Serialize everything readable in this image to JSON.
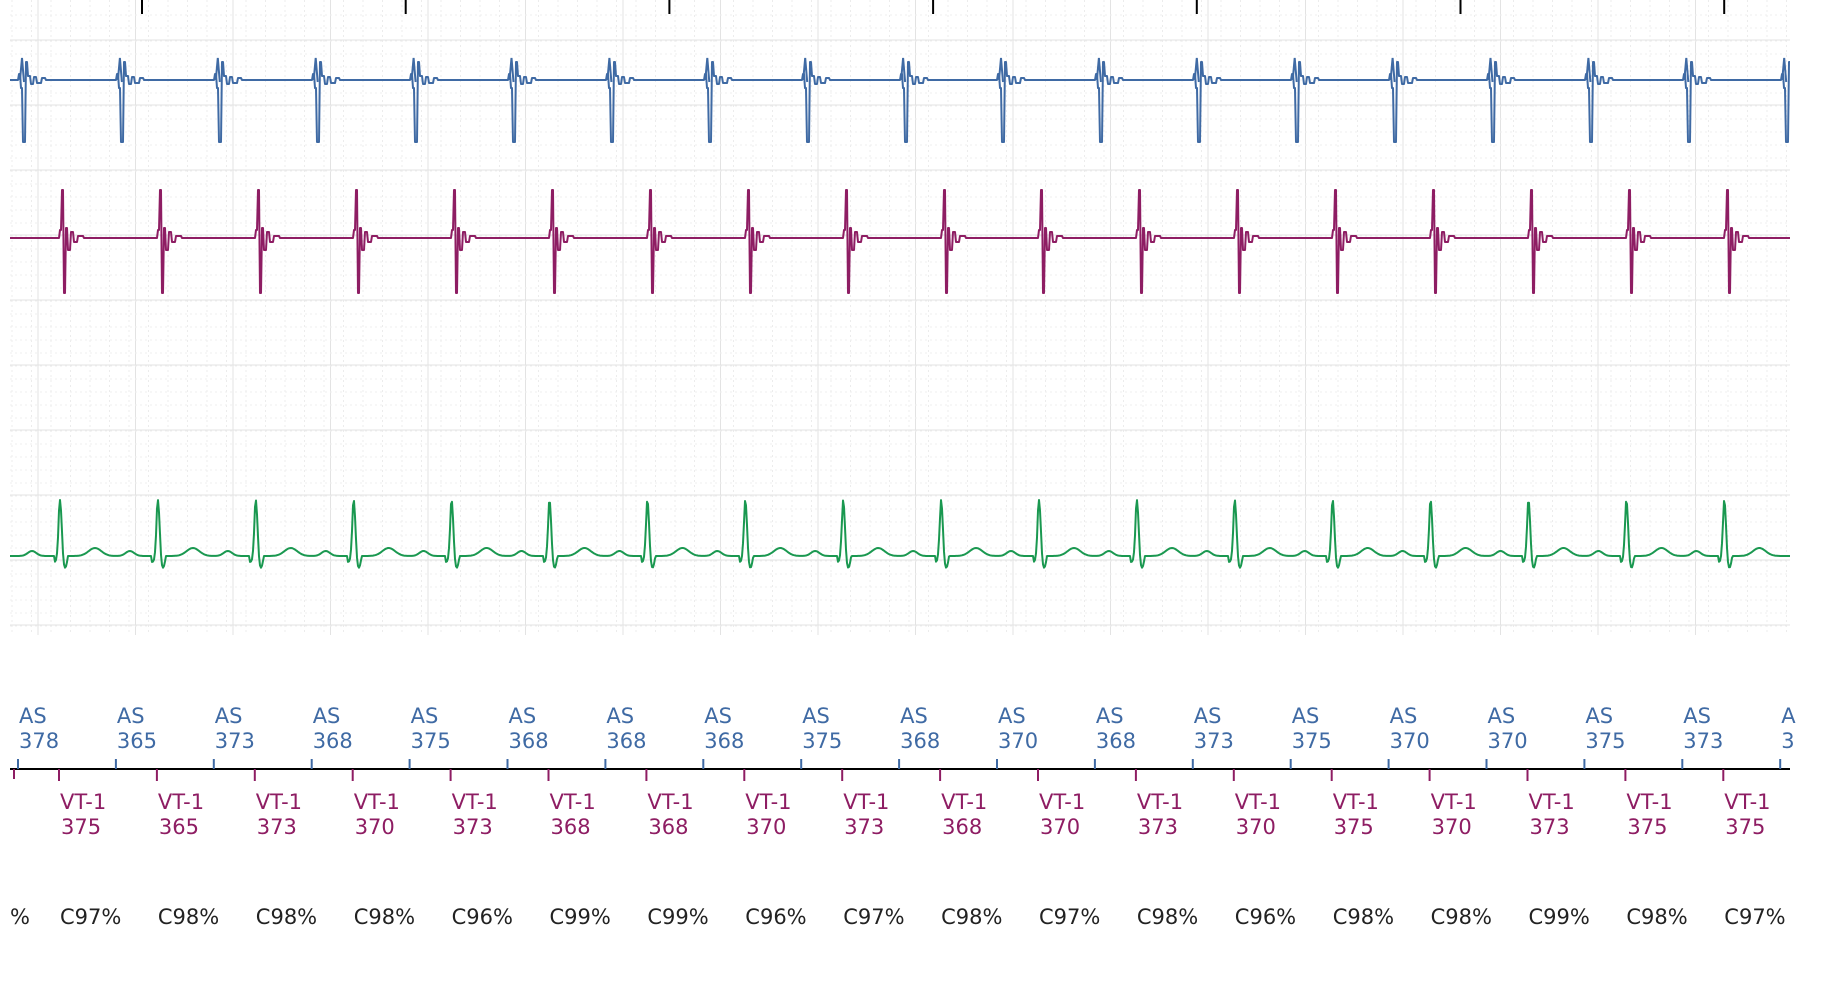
{
  "colors": {
    "atrial": "#3f6aa4",
    "ventricular": "#8e1d63",
    "surface": "#1a9850",
    "grid": "#e3e3e3",
    "marker_text": "#222222",
    "axis": "#000000"
  },
  "chart_data": {
    "type": "line",
    "channels": [
      {
        "color_key": "atrial",
        "waveform": "atrial-egm",
        "beats": 18
      },
      {
        "color_key": "ventricular",
        "waveform": "ventricular-egm",
        "beats": 18
      },
      {
        "color_key": "surface",
        "waveform": "surface-ecg",
        "beats": 18
      }
    ],
    "grid": true,
    "atrial_markers": [
      {
        "label": "AS",
        "interval": "378"
      },
      {
        "label": "AS",
        "interval": "365"
      },
      {
        "label": "AS",
        "interval": "373"
      },
      {
        "label": "AS",
        "interval": "368"
      },
      {
        "label": "AS",
        "interval": "375"
      },
      {
        "label": "AS",
        "interval": "368"
      },
      {
        "label": "AS",
        "interval": "368"
      },
      {
        "label": "AS",
        "interval": "368"
      },
      {
        "label": "AS",
        "interval": "375"
      },
      {
        "label": "AS",
        "interval": "368"
      },
      {
        "label": "AS",
        "interval": "370"
      },
      {
        "label": "AS",
        "interval": "368"
      },
      {
        "label": "AS",
        "interval": "373"
      },
      {
        "label": "AS",
        "interval": "375"
      },
      {
        "label": "AS",
        "interval": "370"
      },
      {
        "label": "AS",
        "interval": "370"
      },
      {
        "label": "AS",
        "interval": "375"
      },
      {
        "label": "AS",
        "interval": "373"
      },
      {
        "label": "A",
        "interval": "3"
      }
    ],
    "ventricular_markers": [
      {
        "label": "VT-1",
        "interval": "375"
      },
      {
        "label": "VT-1",
        "interval": "365"
      },
      {
        "label": "VT-1",
        "interval": "373"
      },
      {
        "label": "VT-1",
        "interval": "370"
      },
      {
        "label": "VT-1",
        "interval": "373"
      },
      {
        "label": "VT-1",
        "interval": "368"
      },
      {
        "label": "VT-1",
        "interval": "368"
      },
      {
        "label": "VT-1",
        "interval": "370"
      },
      {
        "label": "VT-1",
        "interval": "373"
      },
      {
        "label": "VT-1",
        "interval": "368"
      },
      {
        "label": "VT-1",
        "interval": "370"
      },
      {
        "label": "VT-1",
        "interval": "373"
      },
      {
        "label": "VT-1",
        "interval": "370"
      },
      {
        "label": "VT-1",
        "interval": "375"
      },
      {
        "label": "VT-1",
        "interval": "370"
      },
      {
        "label": "VT-1",
        "interval": "373"
      },
      {
        "label": "VT-1",
        "interval": "375"
      },
      {
        "label": "VT-1",
        "interval": "375"
      }
    ],
    "correlations": [
      "%",
      "C97%",
      "C98%",
      "C98%",
      "C98%",
      "C96%",
      "C99%",
      "C99%",
      "C96%",
      "C97%",
      "C98%",
      "C97%",
      "C98%",
      "C96%",
      "C98%",
      "C98%",
      "C99%",
      "C98%",
      "C97%"
    ]
  }
}
